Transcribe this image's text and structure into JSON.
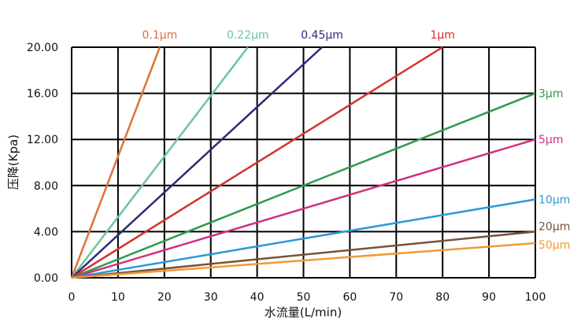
{
  "chart_data": {
    "type": "line",
    "title": "",
    "xlabel": "水流量(L/min)",
    "ylabel": "压降(Kpa)",
    "xlim": [
      0,
      100
    ],
    "ylim": [
      0,
      20
    ],
    "x_ticks": [
      0,
      10,
      20,
      30,
      40,
      50,
      60,
      70,
      80,
      90,
      100
    ],
    "x_tick_labels": [
      "0",
      "10",
      "20",
      "30",
      "40",
      "50",
      "60",
      "70",
      "80",
      "90",
      "100"
    ],
    "y_ticks": [
      0,
      4,
      8,
      12,
      16,
      20
    ],
    "y_tick_labels": [
      "0.00",
      "4.00",
      "8.00",
      "12.00",
      "16.00",
      "20.00"
    ],
    "grid": true,
    "legend": "inline labels at line ends",
    "series": [
      {
        "name": "0.1µm",
        "color": "#e0703a",
        "x": [
          0,
          19
        ],
        "y": [
          0,
          20
        ]
      },
      {
        "name": "0.22µm",
        "color": "#6cc3a8",
        "x": [
          0,
          38
        ],
        "y": [
          0,
          20
        ]
      },
      {
        "name": "0.45µm",
        "color": "#2b2a7a",
        "x": [
          0,
          54
        ],
        "y": [
          0,
          20
        ]
      },
      {
        "name": "1µm",
        "color": "#d2332e",
        "x": [
          0,
          80
        ],
        "y": [
          0,
          20
        ]
      },
      {
        "name": "3µm",
        "color": "#2e9a4c",
        "x": [
          0,
          100
        ],
        "y": [
          0,
          16
        ]
      },
      {
        "name": "5µm",
        "color": "#d1307f",
        "x": [
          0,
          100
        ],
        "y": [
          0,
          12
        ]
      },
      {
        "name": "10µm",
        "color": "#2a9bd4",
        "x": [
          0,
          100
        ],
        "y": [
          0,
          6.8
        ]
      },
      {
        "name": "20µm",
        "color": "#7a5236",
        "x": [
          0,
          100
        ],
        "y": [
          0,
          4
        ]
      },
      {
        "name": "50µm",
        "color": "#f09a35",
        "x": [
          0,
          100
        ],
        "y": [
          0,
          3
        ]
      }
    ]
  }
}
